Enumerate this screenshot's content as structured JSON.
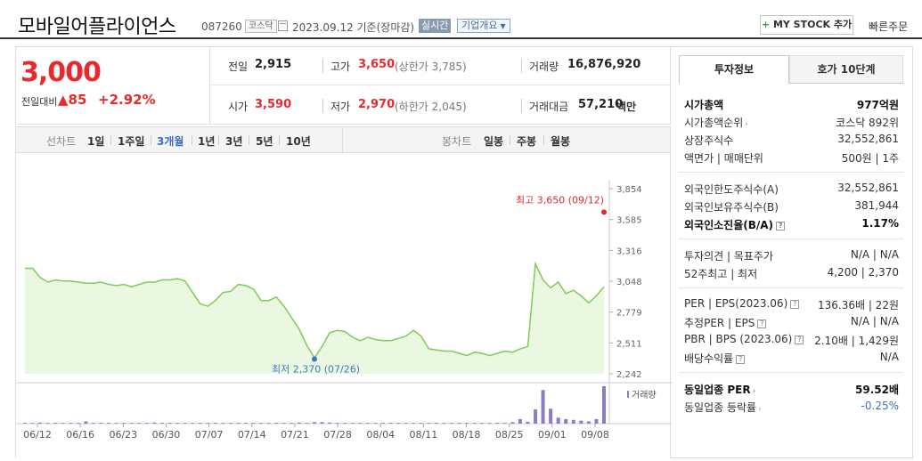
{
  "header": {
    "name": "모바일어플라이언스",
    "code": "087260",
    "market": "코스닥",
    "date": "2023.09.12 기준(장마감)",
    "realtime": "실시간",
    "company_overview": "기업개요",
    "my_stock": "MY STOCK 추가",
    "quick_order": "빠른주문"
  },
  "price": {
    "current": "3,000",
    "diff_label": "전일대비",
    "diff_value": "85",
    "diff_pct": "+2.92%",
    "prev_close_label": "전일",
    "prev_close": "2,915",
    "high_label": "고가",
    "high": "3,650",
    "upper_limit": "(상한가 3,785)",
    "volume_label": "거래량",
    "volume": "16,876,920",
    "open_label": "시가",
    "open": "3,590",
    "low_label": "저가",
    "low": "2,970",
    "lower_limit": "(하한가 2,045)",
    "amount_label": "거래대금",
    "amount": "57,210",
    "amount_unit": "백만"
  },
  "toolbar": {
    "line_chart": "선차트",
    "periods": [
      "1일",
      "1주일",
      "3개월",
      "1년",
      "3년",
      "5년",
      "10년"
    ],
    "selected": "3개월",
    "candle_chart": "봉차트",
    "candle_periods": [
      "일봉",
      "주봉",
      "월봉"
    ]
  },
  "chart_data": {
    "type": "line",
    "y_ticks": [
      "3,854",
      "3,585",
      "3,316",
      "3,048",
      "2,779",
      "2,511",
      "2,242"
    ],
    "ylim": [
      2242,
      3854
    ],
    "x_labels": [
      "06/12",
      "06/16",
      "06/23",
      "06/30",
      "07/07",
      "07/14",
      "07/21",
      "07/28",
      "08/04",
      "08/11",
      "08/18",
      "08/25",
      "09/01",
      "09/08"
    ],
    "high_annotation": "최고 3,650 (09/12)",
    "low_annotation": "최저 2,370 (07/26)",
    "volume_legend": "거래량",
    "series": [
      {
        "values": [
          3160,
          3160,
          3080,
          3040,
          3060,
          3050,
          3050,
          3040,
          3030,
          3030,
          3040,
          3020,
          3010,
          3020,
          3000,
          3020,
          3040,
          3040,
          3060,
          3060,
          3070,
          3050,
          2950,
          2850,
          2830,
          2880,
          2950,
          2960,
          3020,
          3010,
          2980,
          2880,
          2880,
          2910,
          2830,
          2730,
          2630,
          2490,
          2380,
          2480,
          2600,
          2620,
          2610,
          2560,
          2530,
          2560,
          2540,
          2530,
          2530,
          2550,
          2570,
          2620,
          2570,
          2460,
          2450,
          2440,
          2440,
          2420,
          2400,
          2430,
          2420,
          2400,
          2420,
          2440,
          2430,
          2460,
          2480,
          3200,
          3060,
          2990,
          3040,
          2940,
          2970,
          2920,
          2860,
          2920,
          3000
        ]
      }
    ],
    "volume": [
      0.02,
      0.02,
      0.03,
      0.02,
      0.02,
      0.02,
      0.02,
      0.02,
      0.06,
      0.02,
      0.02,
      0.02,
      0.02,
      0.02,
      0.02,
      0.02,
      0.02,
      0.03,
      0.02,
      0.02,
      0.02,
      0.02,
      0.02,
      0.02,
      0.02,
      0.02,
      0.02,
      0.02,
      0.02,
      0.02,
      0.02,
      0.02,
      0.02,
      0.02,
      0.02,
      0.02,
      0.03,
      0.02,
      0.04,
      0.04,
      0.03,
      0.02,
      0.02,
      0.02,
      0.02,
      0.02,
      0.02,
      0.02,
      0.02,
      0.02,
      0.02,
      0.02,
      0.02,
      0.02,
      0.02,
      0.02,
      0.02,
      0.02,
      0.02,
      0.02,
      0.02,
      0.02,
      0.02,
      0.02,
      0.04,
      0.12,
      0.05,
      0.38,
      0.9,
      0.4,
      0.16,
      0.12,
      0.1,
      0.08,
      0.06,
      0.12,
      1.0
    ]
  },
  "panel": {
    "tab_invest": "투자정보",
    "tab_quote": "호가 10단계",
    "rows": [
      {
        "label": "시가총액",
        "value": "977억원"
      },
      {
        "label": "시가총액순위",
        "value": "코스닥 892위"
      },
      {
        "label": "상장주식수",
        "value": "32,552,861"
      },
      {
        "label": "액면가 | 매매단위",
        "value": "500원 | 1주"
      },
      {
        "label": "외국인한도주식수(A)",
        "value": "32,552,861"
      },
      {
        "label": "외국인보유주식수(B)",
        "value": "381,944"
      },
      {
        "label": "외국인소진율(B/A)",
        "value": "1.17%"
      },
      {
        "label": "투자의견 | 목표주가",
        "value": "N/A | N/A"
      },
      {
        "label": "52주최고 | 최저",
        "value": "4,200 | 2,370"
      },
      {
        "label": "PER | EPS(2023.06)",
        "value": "136.36배 | 22원"
      },
      {
        "label": "추정PER | EPS",
        "value": "N/A | N/A"
      },
      {
        "label": "PBR | BPS (2023.06)",
        "value": "2.10배 | 1,429원"
      },
      {
        "label": "배당수익률",
        "value": "N/A"
      },
      {
        "label": "동일업종 PER",
        "value": "59.52배"
      },
      {
        "label": "동일업종 등락률",
        "value": "-0.25%"
      }
    ]
  },
  "colors": {
    "up": "#e9292b",
    "line": "#7ecb57",
    "fill": "#eaf8e1",
    "volume": "#8e7cc3",
    "low_dot": "#3b78c4"
  }
}
